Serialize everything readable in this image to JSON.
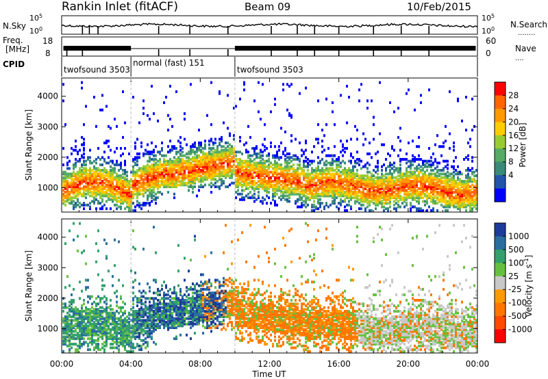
{
  "header": {
    "station": "Rankin Inlet (fitACF)",
    "beam": "Beam 09",
    "date": "10/Feb/2015"
  },
  "aux_labels": {
    "nsky": "N.Sky",
    "nsky_top": "10^5",
    "nsky_bottom": "10^0",
    "nsearch": "N.Search",
    "nsearch_top": "10^5",
    "nsearch_bottom": "10^0",
    "freq_line1": "Freq.",
    "freq_line2": "[MHz]",
    "freq_top": "18",
    "freq_bottom": "8",
    "nave": "Nave",
    "nave_top": "60",
    "nave_bottom": "0",
    "cpid": "CPID",
    "dots": "........",
    "dots_short": "...."
  },
  "cpid_segments": [
    {
      "label": "twofsound 3503",
      "start_hour": 0
    },
    {
      "label": "normal (fast) 151",
      "start_hour": 4.0
    },
    {
      "label": "twofsound 3503",
      "start_hour": 10.0
    }
  ],
  "chart_data": [
    {
      "type": "heatmap",
      "quantity": "power",
      "ylabel": "Slant Range [km]",
      "yticks": [
        1000,
        2000,
        3000,
        4000
      ],
      "ylim": [
        200,
        4600
      ],
      "xlim": [
        0,
        24
      ],
      "colorbar_label": "Power [dB]",
      "colorbar_ticks": [
        "28",
        "24",
        "20",
        "16",
        "12",
        "8",
        "4"
      ],
      "colorbar_colors": [
        "#ff0000",
        "#ff6600",
        "#ff9900",
        "#ffcc00",
        "#99cc33",
        "#55aa66",
        "#3a8a7a",
        "#2255aa",
        "#0000ff"
      ]
    },
    {
      "type": "heatmap",
      "quantity": "velocity",
      "ylabel": "Slant Range [km]",
      "yticks": [
        1000,
        2000,
        3000,
        4000
      ],
      "ylim": [
        200,
        4600
      ],
      "xlim": [
        0,
        24
      ],
      "xlabel": "Time UT",
      "xticks": [
        "00:00",
        "04:00",
        "08:00",
        "12:00",
        "16:00",
        "20:00",
        "00:00"
      ],
      "colorbar_label": "Velocity [m s^-1]",
      "colorbar_ticks": [
        "1000",
        "500",
        "100",
        "25",
        "-25",
        "-100",
        "-500",
        "-1000"
      ],
      "colorbar_colors": [
        "#1e3c9a",
        "#2a6ea0",
        "#33a06b",
        "#66c040",
        "#c8c8c8",
        "#ff9900",
        "#ff7700",
        "#ff4a00",
        "#ff0000"
      ]
    }
  ]
}
